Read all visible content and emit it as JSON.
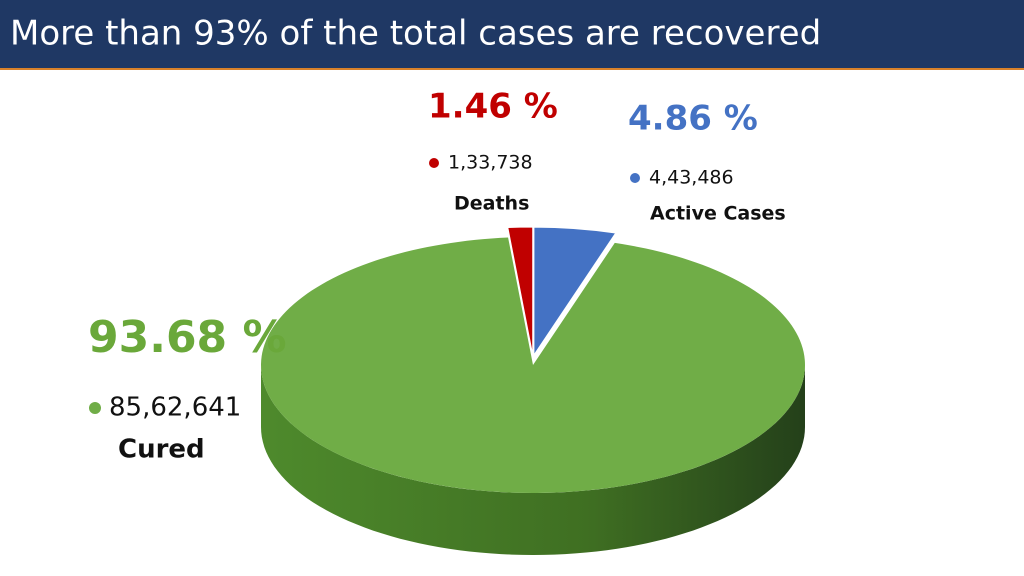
{
  "chart_data": {
    "type": "pie",
    "title": "More than 93% of the total cases are recovered",
    "categories": [
      "Cured",
      "Deaths",
      "Active Cases"
    ],
    "values": [
      93.68,
      1.46,
      4.86
    ],
    "value_labels": [
      "93.68 %",
      "1.46 %",
      "4.86 %"
    ],
    "counts": [
      8562641,
      133738,
      443486
    ],
    "count_labels": [
      "85,62,641",
      "1,33,738",
      "4,43,486"
    ],
    "colors": [
      "#70ad47",
      "#c00000",
      "#4472c4"
    ]
  }
}
